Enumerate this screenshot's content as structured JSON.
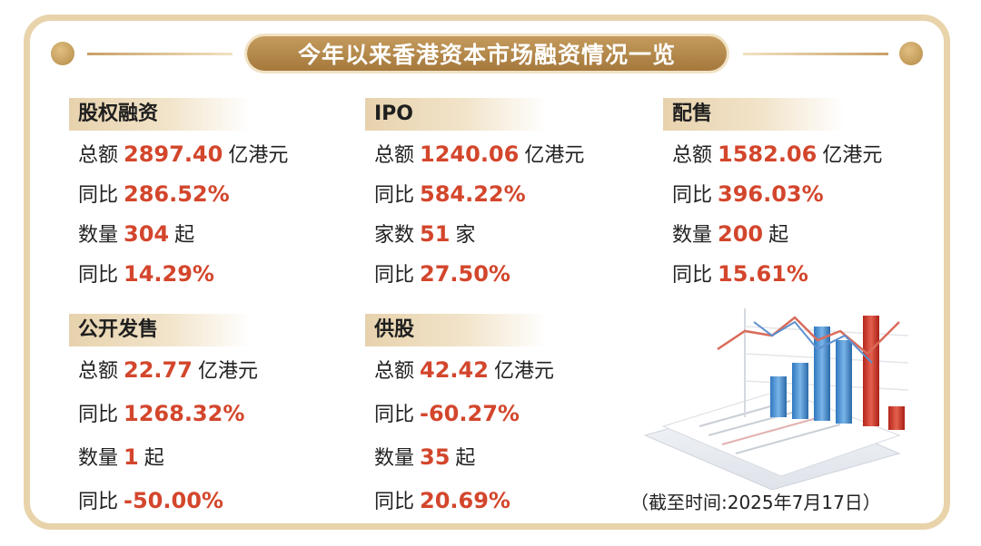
{
  "title": "今年以来香港资本市场融资情况一览",
  "sections": [
    {
      "title": "股权融资",
      "rows": [
        {
          "label": "总额",
          "value": "2897.40",
          "unit": "亿港元"
        },
        {
          "label": "同比",
          "value": "286.52%",
          "unit": ""
        },
        {
          "label": "数量",
          "value": "304",
          "unit": "起"
        },
        {
          "label": "同比",
          "value": "14.29%",
          "unit": ""
        }
      ]
    },
    {
      "title": "IPO",
      "rows": [
        {
          "label": "总额",
          "value": "1240.06",
          "unit": "亿港元"
        },
        {
          "label": "同比",
          "value": "584.22%",
          "unit": ""
        },
        {
          "label": "家数",
          "value": "51",
          "unit": "家"
        },
        {
          "label": "同比",
          "value": "27.50%",
          "unit": ""
        }
      ]
    },
    {
      "title": "配售",
      "rows": [
        {
          "label": "总额",
          "value": "1582.06",
          "unit": "亿港元"
        },
        {
          "label": "同比",
          "value": "396.03%",
          "unit": ""
        },
        {
          "label": "数量",
          "value": "200",
          "unit": "起"
        },
        {
          "label": "同比",
          "value": "15.61%",
          "unit": ""
        }
      ]
    },
    {
      "title": "公开发售",
      "rows": [
        {
          "label": "总额",
          "value": "22.77",
          "unit": "亿港元"
        },
        {
          "label": "同比",
          "value": "1268.32%",
          "unit": ""
        },
        {
          "label": "数量",
          "value": "1",
          "unit": "起"
        },
        {
          "label": "同比",
          "value": "-50.00%",
          "unit": ""
        }
      ]
    },
    {
      "title": "供股",
      "rows": [
        {
          "label": "总额",
          "value": "42.42",
          "unit": "亿港元"
        },
        {
          "label": "同比",
          "value": "-60.27%",
          "unit": ""
        },
        {
          "label": "数量",
          "value": "35",
          "unit": "起"
        },
        {
          "label": "同比",
          "value": "20.69%",
          "unit": ""
        }
      ]
    }
  ],
  "footnote": "（截至时间:2025年7月17日）",
  "colors": {
    "accent_gold": "#b48a46",
    "value_red": "#d3462c",
    "border": "#e8d3aa"
  },
  "decoration_icon": "bar-chart-illustration-icon"
}
